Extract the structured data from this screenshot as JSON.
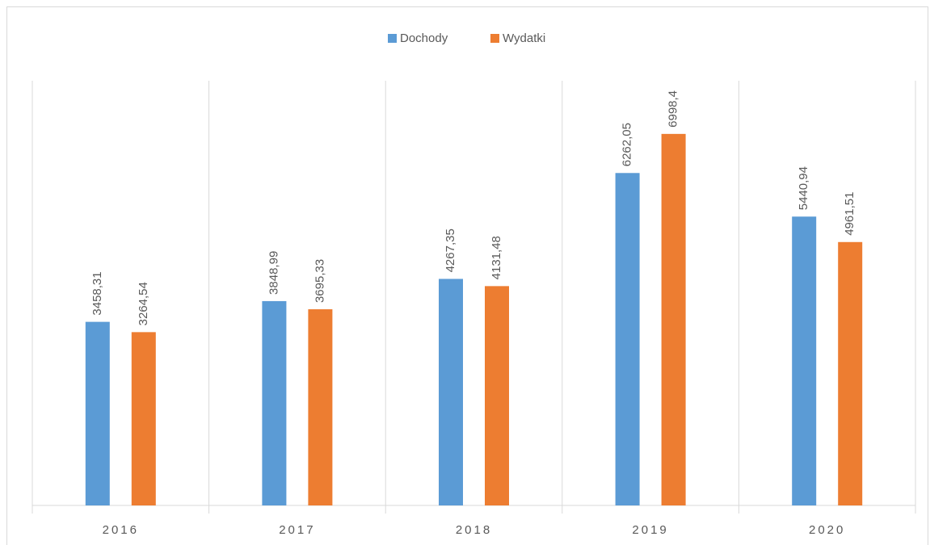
{
  "chart_data": {
    "type": "bar",
    "categories": [
      "2016",
      "2017",
      "2018",
      "2019",
      "2020"
    ],
    "series": [
      {
        "name": "Dochody",
        "color": "#5b9bd5",
        "values": [
          3458.31,
          3848.99,
          4267.35,
          6262.05,
          5440.94
        ],
        "value_labels": [
          "3458,31",
          "3848,99",
          "4267,35",
          "6262,05",
          "5440,94"
        ]
      },
      {
        "name": "Wydatki",
        "color": "#ed7d31",
        "values": [
          3264.54,
          3695.33,
          4131.48,
          6998.4,
          4961.51
        ],
        "value_labels": [
          "3264,54",
          "3695,33",
          "4131,48",
          "6998,4",
          "4961,51"
        ]
      }
    ],
    "ylim": [
      0,
      8000
    ],
    "legend": "top"
  }
}
